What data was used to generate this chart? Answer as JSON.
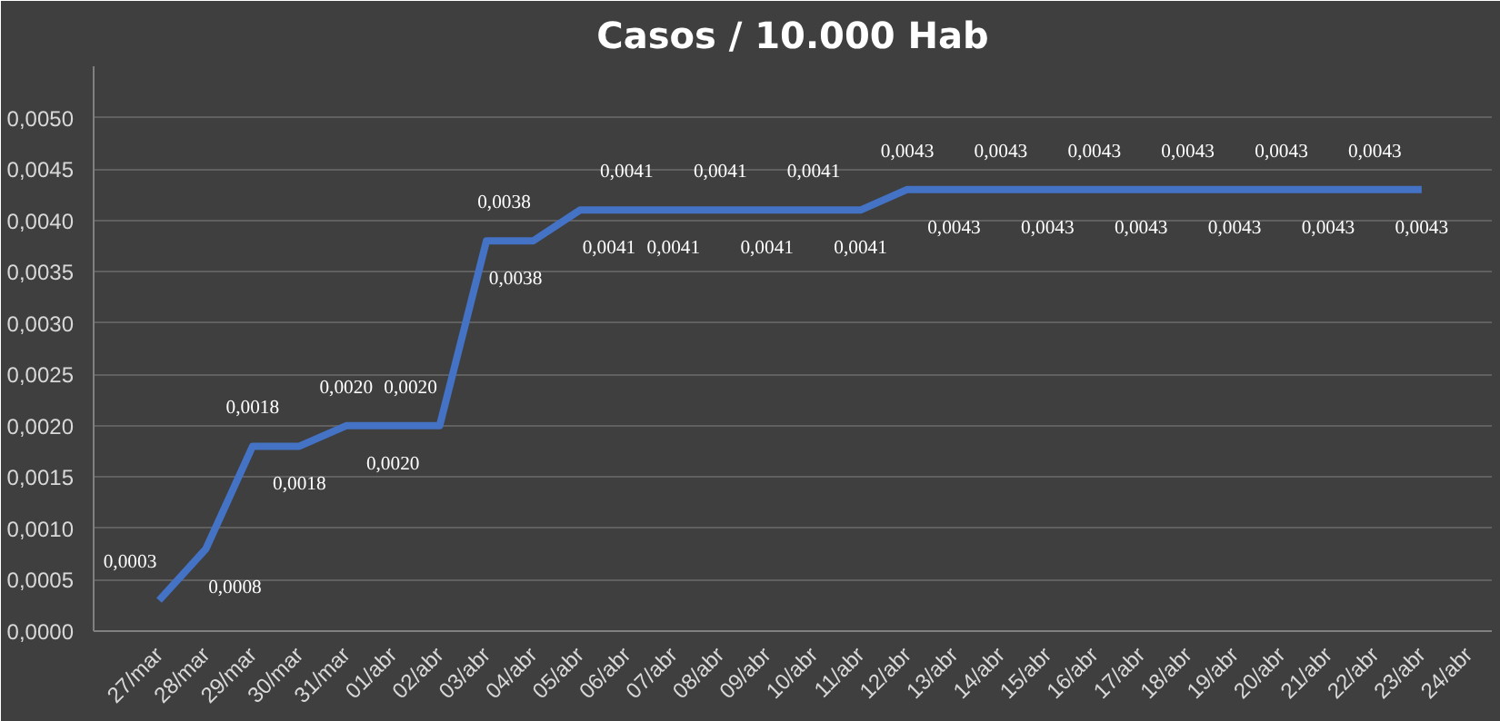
{
  "chart_data": {
    "type": "line",
    "title": "Casos / 10.000 Hab",
    "categories": [
      "27/mar",
      "28/mar",
      "29/mar",
      "30/mar",
      "31/mar",
      "01/abr",
      "02/abr",
      "03/abr",
      "04/abr",
      "05/abr",
      "06/abr",
      "07/abr",
      "08/abr",
      "09/abr",
      "10/abr",
      "11/abr",
      "12/abr",
      "13/abr",
      "14/abr",
      "15/abr",
      "16/abr",
      "17/abr",
      "18/abr",
      "19/abr",
      "20/abr",
      "21/abr",
      "22/abr",
      "23/abr",
      "24/abr"
    ],
    "series": [
      {
        "color": "#4472c4",
        "values": [
          0.0003,
          0.0008,
          0.0018,
          0.0018,
          0.002,
          0.002,
          0.002,
          0.0038,
          0.0038,
          0.0041,
          0.0041,
          0.0041,
          0.0041,
          0.0041,
          0.0041,
          0.0041,
          0.0043,
          0.0043,
          0.0043,
          0.0043,
          0.0043,
          0.0043,
          0.0043,
          0.0043,
          0.0043,
          0.0043,
          0.0043,
          0.0043,
          null
        ],
        "value_labels": [
          "0,0003",
          "0,0008",
          "0,0018",
          "0,0018",
          "0,0020",
          "0,0020",
          "0,0020",
          "0,0038",
          "0,0038",
          "0,0041",
          "0,0041",
          "0,0041",
          "0,0041",
          "0,0041",
          "0,0041",
          "0,0041",
          "0,0043",
          "0,0043",
          "0,0043",
          "0,0043",
          "0,0043",
          "0,0043",
          "0,0043",
          "0,0043",
          "0,0043",
          "0,0043",
          "0,0043",
          "0,0043",
          null
        ]
      }
    ],
    "ylim": [
      0,
      0.0055
    ],
    "yticks": [
      {
        "value": 0,
        "label": "0,0000"
      },
      {
        "value": 0.0005,
        "label": "0,0005"
      },
      {
        "value": 0.001,
        "label": "0,0010"
      },
      {
        "value": 0.0015,
        "label": "0,0015"
      },
      {
        "value": 0.002,
        "label": "0,0020"
      },
      {
        "value": 0.0025,
        "label": "0,0025"
      },
      {
        "value": 0.003,
        "label": "0,0030"
      },
      {
        "value": 0.0035,
        "label": "0,0035"
      },
      {
        "value": 0.004,
        "label": "0,0040"
      },
      {
        "value": 0.0045,
        "label": "0,0045"
      },
      {
        "value": 0.005,
        "label": "0,0050"
      }
    ],
    "grid": "y",
    "marker": "none",
    "line_style": "solid"
  }
}
